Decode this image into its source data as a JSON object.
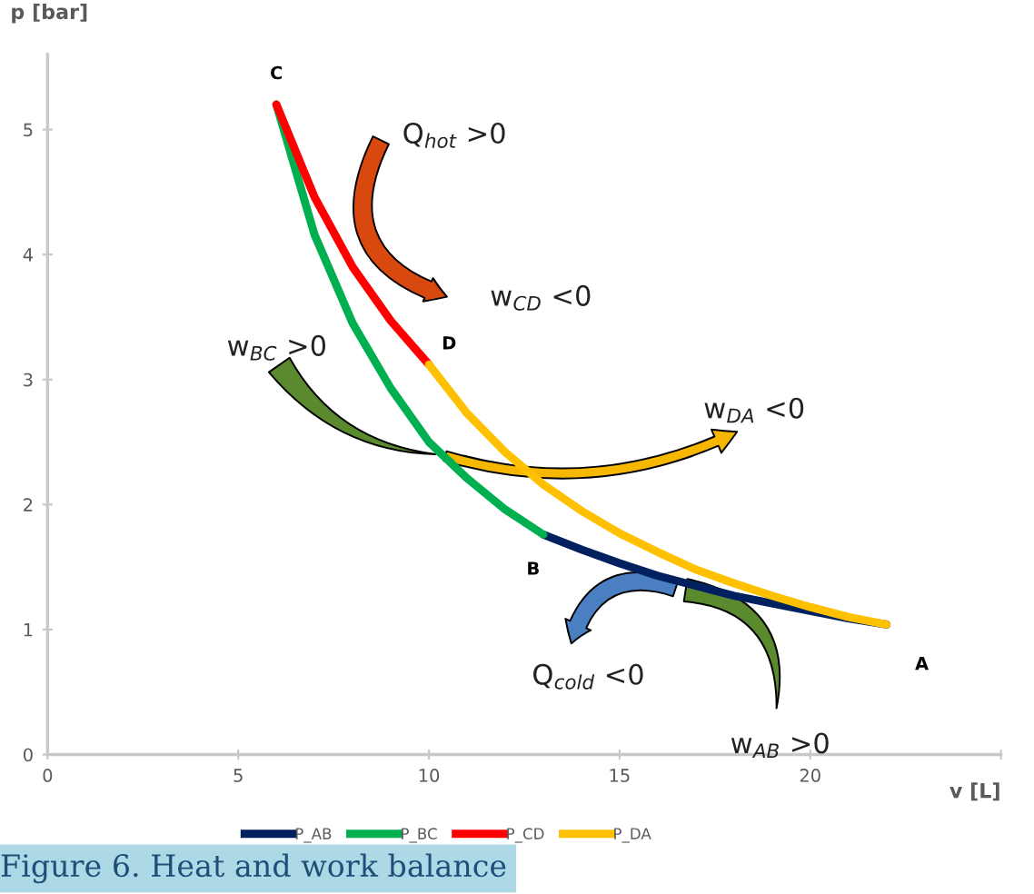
{
  "chart_data": {
    "type": "line",
    "xlabel": "v [L]",
    "ylabel": "p [bar]",
    "xlim": [
      0,
      25
    ],
    "xticks": [
      0,
      5,
      10,
      15,
      20,
      {
        "value": 25,
        "label": null
      }
    ],
    "ylim": [
      0,
      5.6
    ],
    "yticks": [
      0,
      1,
      2,
      3,
      4,
      5
    ],
    "grid": false,
    "legend": "bottom",
    "marker": "none",
    "line_style": "solid",
    "series": [
      {
        "name": "P_AB",
        "color": "#002060",
        "x": [
          13,
          14,
          15,
          16,
          17,
          18,
          19,
          20,
          21,
          22
        ],
        "values": [
          1.76,
          1.64,
          1.53,
          1.43,
          1.35,
          1.27,
          1.21,
          1.15,
          1.09,
          1.04
        ]
      },
      {
        "name": "P_BC",
        "color": "#00b050",
        "x": [
          6,
          7,
          8,
          9,
          10,
          11,
          12,
          13
        ],
        "values": [
          5.2,
          4.16,
          3.45,
          2.93,
          2.5,
          2.21,
          1.96,
          1.76
        ]
      },
      {
        "name": "P_CD",
        "color": "#ff0000",
        "x": [
          6,
          7,
          8,
          9,
          10
        ],
        "values": [
          5.2,
          4.46,
          3.9,
          3.47,
          3.12
        ]
      },
      {
        "name": "P_DA",
        "color": "#ffc000",
        "x": [
          10,
          11,
          12,
          13,
          14,
          15,
          16,
          17,
          18,
          19,
          20,
          21,
          22
        ],
        "values": [
          3.12,
          2.73,
          2.42,
          2.16,
          1.95,
          1.77,
          1.62,
          1.48,
          1.37,
          1.27,
          1.18,
          1.1,
          1.04
        ]
      }
    ],
    "annotations": [
      {
        "text": "A",
        "x": 22,
        "y": 1.04
      },
      {
        "text": "B",
        "x": 13,
        "y": 1.76
      },
      {
        "text": "C",
        "x": 6,
        "y": 5.2
      },
      {
        "text": "D",
        "x": 10,
        "y": 3.12
      },
      "Q$_{hot}$ >0",
      "w$_{CD}$ <0",
      "w$_{BC}$ >0",
      "w$_{DA}$ <0",
      "Q$_{cold}$ <0",
      "w$_{AB}$ >0",
      "Figure 6. Heat and work balance"
    ]
  }
}
